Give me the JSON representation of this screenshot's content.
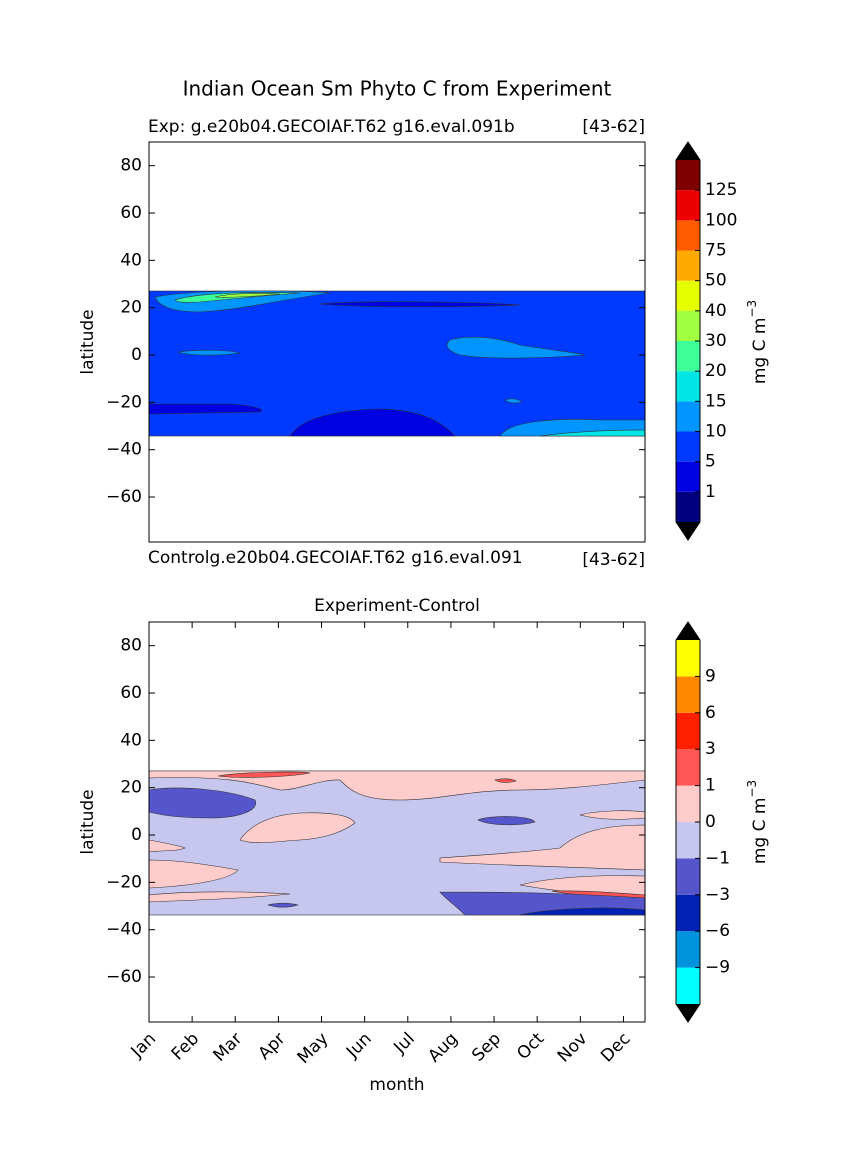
{
  "title": "Indian Ocean Sm Phyto C from Experiment",
  "chart_data": [
    {
      "type": "contour",
      "left_title": "Exp:    g.e20b04.GECOIAF.T62 g16.eval.091b",
      "right_title": "[43-62]",
      "bottom_left_text": "Controlg.e20b04.GECOIAF.T62 g16.eval.091",
      "bottom_right_text": "[43-62]",
      "ylabel": "latitude",
      "ylim": [
        -79,
        90
      ],
      "xlim": [
        0,
        11.5
      ],
      "yticks": [
        {
          "value": -60,
          "label": "−60"
        },
        {
          "value": -40,
          "label": "−40"
        },
        {
          "value": -20,
          "label": "−20"
        },
        0,
        20,
        40,
        60,
        80
      ],
      "colorbar": {
        "label": "mg C m",
        "label_sup": "−3",
        "levels": [
          1,
          5,
          10,
          15,
          20,
          30,
          40,
          50,
          75,
          100,
          125
        ],
        "colors": [
          "#00007f",
          "#0000e0",
          "#0039ff",
          "#0095ff",
          "#00e5e5",
          "#3dff9a",
          "#a0ff40",
          "#e5ff00",
          "#ffaa00",
          "#ff5a00",
          "#ee0000",
          "#800000"
        ],
        "extend_color": "#000000"
      }
    },
    {
      "type": "contour",
      "title": "Experiment-Control",
      "xlabel": "month",
      "ylabel": "latitude",
      "ylim": [
        -79,
        90
      ],
      "xlim": [
        0,
        11.5
      ],
      "categories": [
        "Jan",
        "Feb",
        "Mar",
        "Apr",
        "May",
        "Jun",
        "Jul",
        "Aug",
        "Sep",
        "Oct",
        "Nov",
        "Dec"
      ],
      "yticks": [
        {
          "value": -60,
          "label": "−60"
        },
        {
          "value": -40,
          "label": "−40"
        },
        {
          "value": -20,
          "label": "−20"
        },
        0,
        20,
        40,
        60,
        80
      ],
      "colorbar": {
        "label": "mg C m",
        "label_sup": "−3",
        "levels": [
          {
            "value": -9,
            "label": "−9"
          },
          {
            "value": -6,
            "label": "−6"
          },
          {
            "value": -3,
            "label": "−3"
          },
          {
            "value": -1,
            "label": "−1"
          },
          0,
          1,
          3,
          6,
          9
        ],
        "colors": [
          "#00ffff",
          "#0093dd",
          "#0022b4",
          "#5555cc",
          "#c6c6ee",
          "#ffcccc",
          "#ff5555",
          "#ff2000",
          "#ff8800",
          "#ffff00"
        ],
        "extend_color": "#000000"
      }
    }
  ]
}
